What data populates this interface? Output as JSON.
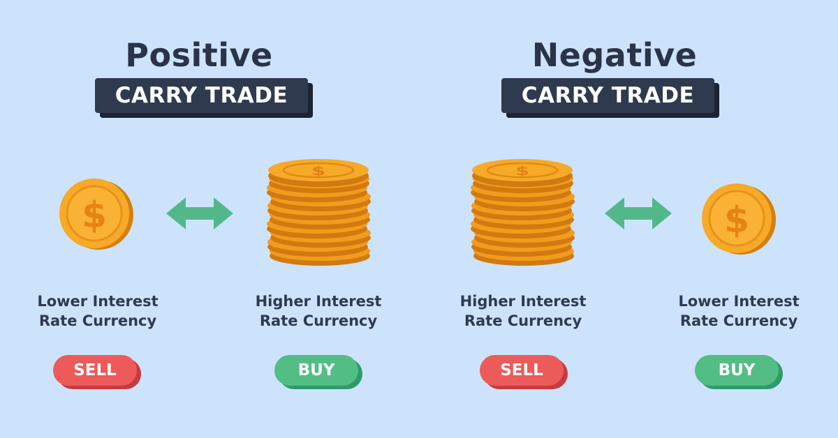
{
  "positive": {
    "title": "Positive",
    "subtitle": "CARRY TRADE",
    "left_label": [
      "Lower Interest",
      "Rate Currency"
    ],
    "left_action": "SELL",
    "right_label": [
      "Higher Interest",
      "Rate Currency"
    ],
    "right_action": "BUY"
  },
  "negative": {
    "title": "Negative",
    "subtitle": "CARRY TRADE",
    "left_label": [
      "Higher Interest",
      "Rate Currency"
    ],
    "left_action": "SELL",
    "right_label": [
      "Lower Interest",
      "Rate Currency"
    ],
    "right_action": "BUY"
  },
  "icons": {
    "coin": "single-coin-icon",
    "stack": "coin-stack-icon",
    "arrow": "double-arrow-icon",
    "currency_symbol": "$"
  },
  "colors": {
    "background": "#cde3fb",
    "banner": "#2f3a4f",
    "heading": "#2a3347",
    "sell": "#ec5b59",
    "buy": "#52bd85",
    "arrow": "#52b889",
    "coin": "#f5a623"
  }
}
